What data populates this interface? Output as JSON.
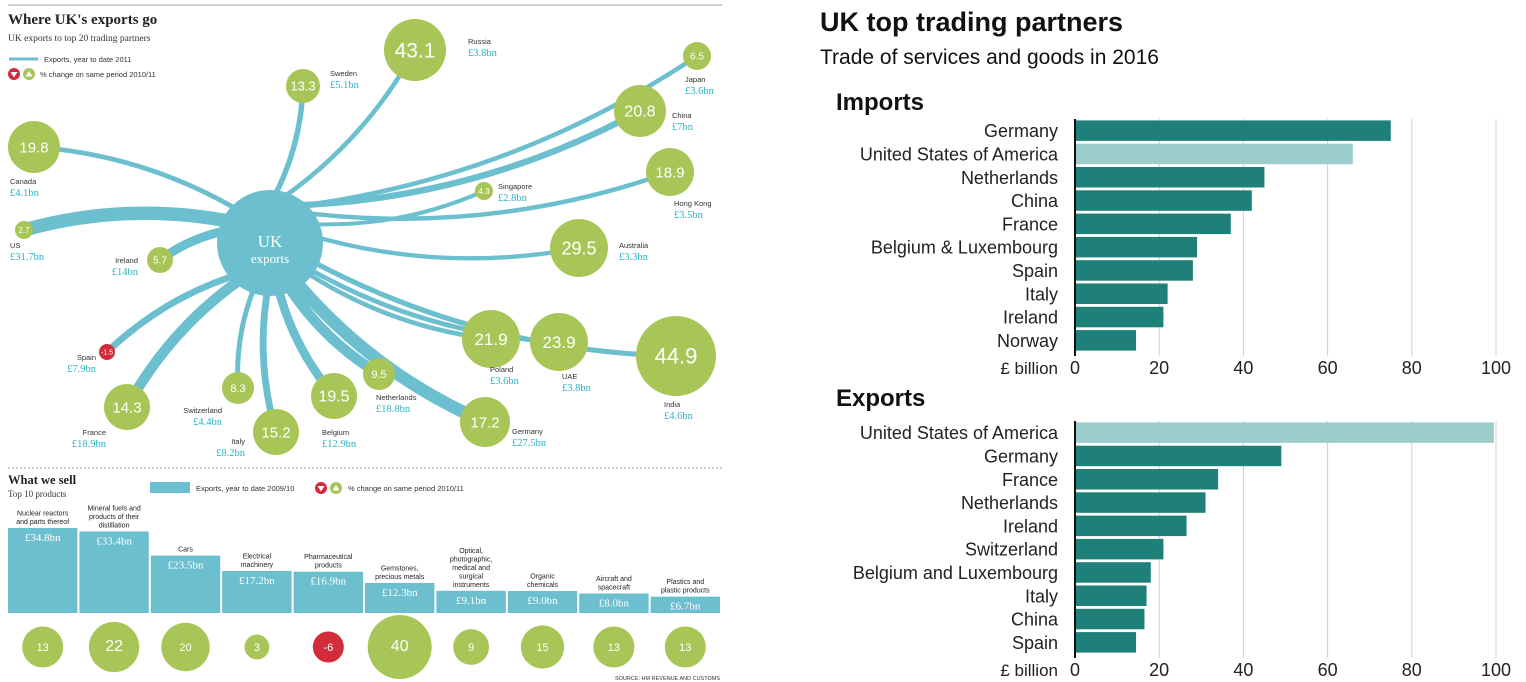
{
  "colors": {
    "teal": "#1f7f79",
    "teal_light": "#9dcccc",
    "hub": "#6cbfcf",
    "green": "#a8c657",
    "red": "#d22c3a",
    "link_cyan": "#2bb3c6"
  },
  "left": {
    "title": "Where UK's exports go",
    "subtitle": "UK exports to top 20 trading partners",
    "legend_line": "Exports, year to date 2011",
    "legend_change": "% change on same period 2010/11",
    "hub_line1": "UK",
    "hub_line2": "exports",
    "partners": [
      {
        "name": "Russia",
        "value": "£3.8bn",
        "change": "43.1",
        "dir": "up"
      },
      {
        "name": "Sweden",
        "value": "£5.1bn",
        "change": "13.3",
        "dir": "up"
      },
      {
        "name": "Japan",
        "value": "£3.6bn",
        "change": "6.5",
        "dir": "up"
      },
      {
        "name": "China",
        "value": "£7bn",
        "change": "20.8",
        "dir": "up"
      },
      {
        "name": "Canada",
        "value": "£4.1bn",
        "change": "19.8",
        "dir": "up"
      },
      {
        "name": "Hong Kong",
        "value": "£3.5bn",
        "change": "18.9",
        "dir": "up"
      },
      {
        "name": "Singapore",
        "value": "£2.8bn",
        "change": "4.3",
        "dir": "up"
      },
      {
        "name": "US",
        "value": "£31.7bn",
        "change": "2.7",
        "dir": "up"
      },
      {
        "name": "Australia",
        "value": "£3.3bn",
        "change": "29.5",
        "dir": "up"
      },
      {
        "name": "Ireland",
        "value": "£14bn",
        "change": "5.7",
        "dir": "up"
      },
      {
        "name": "Spain",
        "value": "£7.9bn",
        "change": "-1.5",
        "dir": "down"
      },
      {
        "name": "Poland",
        "value": "£3.6bn",
        "change": "21.9",
        "dir": "up"
      },
      {
        "name": "UAE",
        "value": "£3.8bn",
        "change": "23.9",
        "dir": "up"
      },
      {
        "name": "India",
        "value": "£4.6bn",
        "change": "44.9",
        "dir": "up"
      },
      {
        "name": "Switzerland",
        "value": "£4.4bn",
        "change": "8.3",
        "dir": "up"
      },
      {
        "name": "Netherlands",
        "value": "£18.8bn",
        "change": "9.5",
        "dir": "up"
      },
      {
        "name": "France",
        "value": "£18.9bn",
        "change": "14.3",
        "dir": "up"
      },
      {
        "name": "Belgium",
        "value": "£12.9bn",
        "change": "19.5",
        "dir": "up"
      },
      {
        "name": "Italy",
        "value": "£8.2bn",
        "change": "15.2",
        "dir": "up"
      },
      {
        "name": "Germany",
        "value": "£27.5bn",
        "change": "17.2",
        "dir": "up"
      }
    ],
    "sell": {
      "title": "What we sell",
      "subtitle": "Top 10 products",
      "legend_bar": "Exports, year to date 2009/10",
      "legend_change": "% change on same period 2010/11",
      "source": "SOURCE: HM REVENUE AND CUSTOMS",
      "products": [
        {
          "name": [
            "Nuclear reactors",
            "and parts thereof"
          ],
          "value": "£34.8bn",
          "amount": 34.8,
          "change": "13"
        },
        {
          "name": [
            "Mineral fuels and",
            "products of their",
            "distillation"
          ],
          "value": "£33.4bn",
          "amount": 33.4,
          "change": "22"
        },
        {
          "name": [
            "Cars"
          ],
          "value": "£23.5bn",
          "amount": 23.5,
          "change": "20"
        },
        {
          "name": [
            "Electrical",
            "machinery"
          ],
          "value": "£17.2bn",
          "amount": 17.2,
          "change": "3"
        },
        {
          "name": [
            "Pharmaceutical",
            "products"
          ],
          "value": "£16.9bn",
          "amount": 16.9,
          "change": "-6"
        },
        {
          "name": [
            "Gemstones,",
            "precious metals"
          ],
          "value": "£12.3bn",
          "amount": 12.3,
          "change": "40"
        },
        {
          "name": [
            "Optical,",
            "photographic,",
            "medical and",
            "surgical",
            "instruments"
          ],
          "value": "£9.1bn",
          "amount": 9.1,
          "change": "9"
        },
        {
          "name": [
            "Organic",
            "chemicals"
          ],
          "value": "£9.0bn",
          "amount": 9.0,
          "change": "15"
        },
        {
          "name": [
            "Aircraft and",
            "spacecraft"
          ],
          "value": "£8.0bn",
          "amount": 8.0,
          "change": "13"
        },
        {
          "name": [
            "Plastics and",
            "plastic products"
          ],
          "value": "£6.7bn",
          "amount": 6.7,
          "change": "13"
        }
      ]
    }
  },
  "right": {
    "title": "UK top trading partners",
    "subtitle": "Trade of services and goods in 2016"
  },
  "chart_data": [
    {
      "type": "bar",
      "title": "Imports",
      "categories": [
        "Germany",
        "United States of America",
        "Netherlands",
        "China",
        "France",
        "Belgium & Luxembourg",
        "Spain",
        "Italy",
        "Ireland",
        "Norway"
      ],
      "values": [
        75,
        66,
        45,
        42,
        37,
        29,
        28,
        22,
        21,
        14.5
      ],
      "highlight": "United States of America",
      "xlabel": "£ billion",
      "xlim": [
        0,
        100
      ],
      "ticks": [
        0,
        20,
        40,
        60,
        80,
        100
      ],
      "grid": true
    },
    {
      "type": "bar",
      "title": "Exports",
      "categories": [
        "United States of America",
        "Germany",
        "France",
        "Netherlands",
        "Ireland",
        "Switzerland",
        "Belgium and Luxembourg",
        "Italy",
        "China",
        "Spain"
      ],
      "values": [
        99.5,
        49,
        34,
        31,
        26.5,
        21,
        18,
        17,
        16.5,
        14.5
      ],
      "highlight": "United States of America",
      "xlabel": "£ billion",
      "xlim": [
        0,
        100
      ],
      "ticks": [
        0,
        20,
        40,
        60,
        80,
        100
      ],
      "grid": true
    }
  ]
}
